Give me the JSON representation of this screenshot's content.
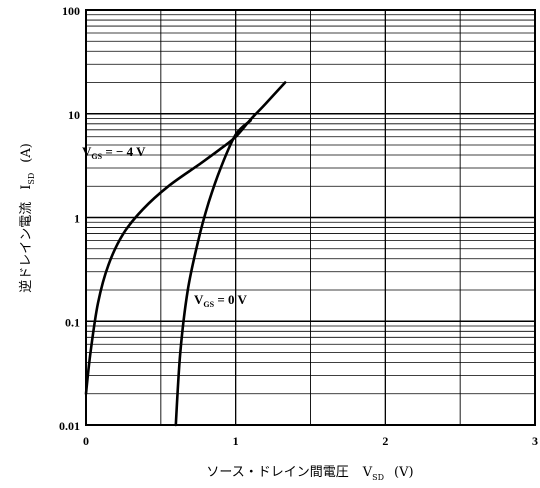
{
  "chart_data": {
    "type": "line",
    "x_axis": {
      "label": "ソース・ドレイン間電圧",
      "symbol": "V",
      "symbol_sub": "SD",
      "unit": "(V)",
      "range": [
        0,
        3
      ],
      "ticks": [
        "0",
        "1",
        "2",
        "3"
      ]
    },
    "y_axis": {
      "label": "逆ドレイン電流",
      "symbol": "I",
      "symbol_sub": "SD",
      "unit": "(A)",
      "scale": "log",
      "range": [
        0.01,
        100
      ],
      "ticks": [
        "0.01",
        "0.1",
        "1",
        "10",
        "100"
      ]
    },
    "grid": true,
    "series": [
      {
        "name": "V_GS = −4 V",
        "points": [
          [
            0.0,
            0.02
          ],
          [
            0.03,
            0.05
          ],
          [
            0.08,
            0.15
          ],
          [
            0.15,
            0.35
          ],
          [
            0.25,
            0.7
          ],
          [
            0.38,
            1.2
          ],
          [
            0.55,
            2.0
          ],
          [
            0.75,
            3.2
          ],
          [
            0.9,
            4.6
          ],
          [
            1.0,
            6.0
          ],
          [
            1.1,
            8.8
          ],
          [
            1.2,
            12.5
          ],
          [
            1.33,
            20.0
          ]
        ]
      },
      {
        "name": "V_GS = 0 V",
        "points": [
          [
            0.6,
            0.01
          ],
          [
            0.63,
            0.05
          ],
          [
            0.68,
            0.2
          ],
          [
            0.75,
            0.6
          ],
          [
            0.82,
            1.4
          ],
          [
            0.9,
            3.0
          ],
          [
            1.0,
            6.3
          ],
          [
            1.1,
            8.6
          ]
        ]
      }
    ],
    "annotations": [
      {
        "text_main": "V",
        "text_sub": "GS",
        "text_rest": " = − 4 V"
      },
      {
        "text_main": "V",
        "text_sub": "GS",
        "text_rest": " = 0 V"
      }
    ]
  }
}
